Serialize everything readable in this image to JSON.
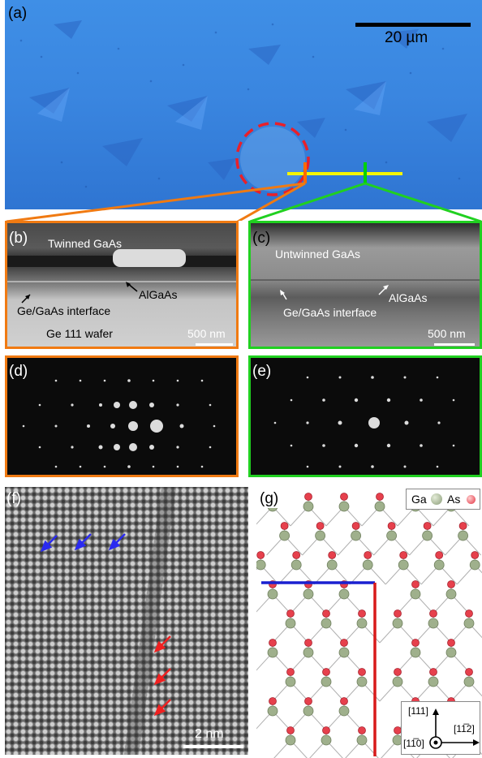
{
  "figure": {
    "panels": {
      "a": {
        "label": "(a)",
        "scale_bar": "20 µm"
      },
      "b": {
        "label": "(b)",
        "top_text": "Twinned GaAs",
        "arrow1_text": "AlGaAs",
        "arrow2_text": "Ge/GaAs interface",
        "bottom_text": "Ge 111 wafer",
        "scale_bar": "500 nm"
      },
      "c": {
        "label": "(c)",
        "top_text": "Untwinned GaAs",
        "arrow1_text": "AlGaAs",
        "arrow2_text": "Ge/GaAs interface",
        "scale_bar": "500 nm"
      },
      "d": {
        "label": "(d)"
      },
      "e": {
        "label": "(e)"
      },
      "f": {
        "label": "(f)",
        "scale_bar": "2 nm"
      },
      "g": {
        "label": "(g)",
        "legend": {
          "ga": "Ga",
          "as": "As"
        },
        "axes": {
          "up": "[111]",
          "right": "[11̅2]",
          "out": "[11̅0]"
        }
      }
    },
    "colors": {
      "orange": "#f07a12",
      "green": "#20d020",
      "yellow": "#f5f500",
      "red_circle": "#e8202a",
      "ga_atom": "#9fb08c",
      "as_atom": "#e6404c",
      "blue_line": "#1a20d0",
      "red_line": "#d81a1a"
    }
  }
}
